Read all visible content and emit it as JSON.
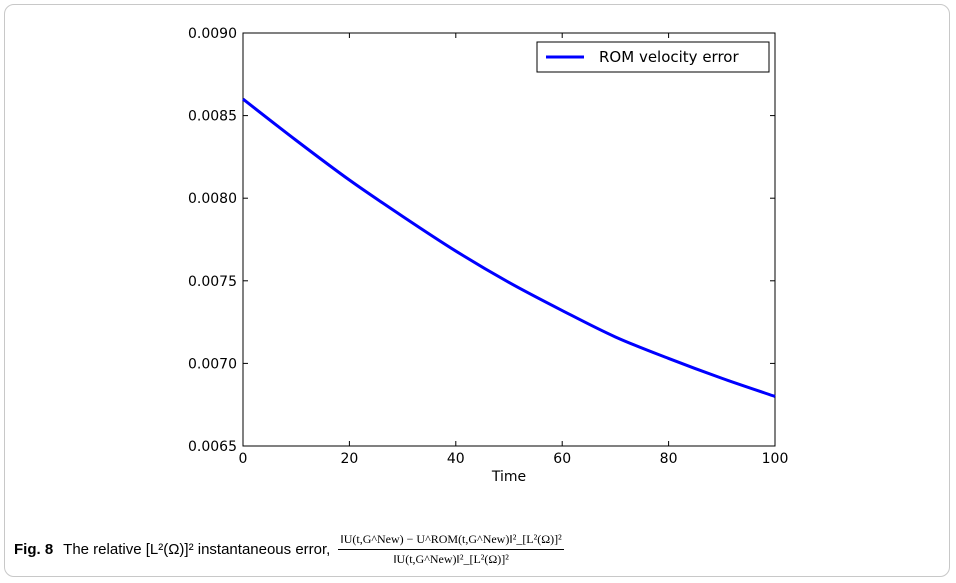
{
  "chart_data": {
    "type": "line",
    "xlabel": "Time",
    "ylabel": "",
    "xlim": [
      0,
      100
    ],
    "ylim": [
      0.0065,
      0.009
    ],
    "xticks": [
      "0",
      "20",
      "40",
      "60",
      "80",
      "100"
    ],
    "yticks": [
      "0.0065",
      "0.0070",
      "0.0075",
      "0.0080",
      "0.0085",
      "0.0090"
    ],
    "legend_position": "top-right",
    "grid": false,
    "series": [
      {
        "name": "ROM velocity error",
        "color": "#0000ff",
        "x": [
          0,
          10,
          20,
          30,
          40,
          50,
          60,
          70,
          80,
          90,
          100
        ],
        "y": [
          0.0086,
          0.00835,
          0.00811,
          0.00789,
          0.00768,
          0.00749,
          0.00732,
          0.00716,
          0.00703,
          0.00691,
          0.0068
        ]
      }
    ]
  },
  "caption": {
    "figure_label": "Fig. 8",
    "description": "The relative [L²(Ω)]² instantaneous error,",
    "numerator_text": "‖U(t,G^New) − U^ROM(t,G^New)‖²_[L²(Ω)]²",
    "denominator_text": "‖U(t,G^New)‖²_[L²(Ω)]²"
  }
}
